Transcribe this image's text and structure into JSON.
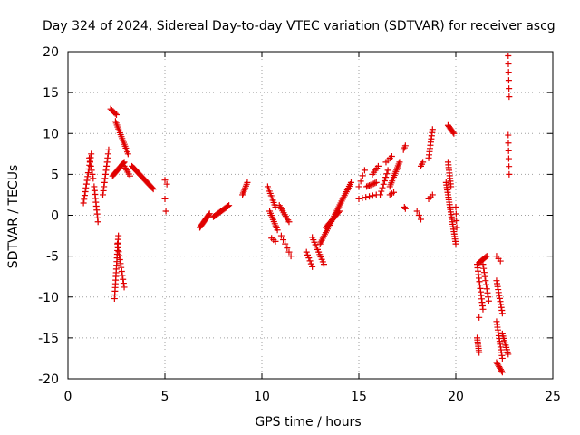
{
  "chart_data": {
    "type": "scatter",
    "title": "Day 324 of 2024, Sidereal Day-to-day VTEC variation (SDTVAR) for receiver ascg",
    "xlabel": "GPS time / hours",
    "ylabel": "SDTVAR / TECUs",
    "xlim": [
      0,
      25
    ],
    "ylim": [
      -20,
      20
    ],
    "xticks": [
      "0",
      "5",
      "10",
      "15",
      "20",
      "25"
    ],
    "yticks": [
      "-20",
      "-15",
      "-10",
      "-5",
      "0",
      "5",
      "10",
      "15",
      "20"
    ],
    "grid": true,
    "marker": "+",
    "color": "#e00000",
    "segments": [
      {
        "x0": 0.8,
        "x1": 1.2,
        "y0": 1.5,
        "y1": 7.5,
        "n": 14
      },
      {
        "x0": 1.1,
        "x1": 1.3,
        "y0": 7.0,
        "y1": 4.5,
        "n": 6
      },
      {
        "x0": 1.35,
        "x1": 1.55,
        "y0": 3.5,
        "y1": -0.8,
        "n": 10
      },
      {
        "x0": 1.8,
        "x1": 2.1,
        "y0": 2.5,
        "y1": 8.0,
        "n": 12
      },
      {
        "x0": 2.2,
        "x1": 2.5,
        "y0": 13.0,
        "y1": 12.3,
        "n": 6
      },
      {
        "x0": 2.45,
        "x1": 3.1,
        "y0": 11.5,
        "y1": 7.5,
        "n": 18
      },
      {
        "x0": 2.3,
        "x1": 2.9,
        "y0": 4.8,
        "y1": 6.5,
        "n": 16
      },
      {
        "x0": 2.9,
        "x1": 3.2,
        "y0": 6.0,
        "y1": 4.8,
        "n": 6
      },
      {
        "x0": 3.3,
        "x1": 4.4,
        "y0": 6.0,
        "y1": 3.2,
        "n": 24
      },
      {
        "x0": 2.4,
        "x1": 2.6,
        "y0": -10.2,
        "y1": -2.5,
        "n": 18
      },
      {
        "x0": 2.55,
        "x1": 2.9,
        "y0": -3.5,
        "y1": -8.8,
        "n": 12
      },
      {
        "x0": 5.0,
        "x1": 5.1,
        "y0": 4.3,
        "y1": 3.8,
        "n": 2
      },
      {
        "x0": 5.0,
        "x1": 5.05,
        "y0": 2.0,
        "y1": 0.5,
        "n": 2
      },
      {
        "x0": 6.8,
        "x1": 7.3,
        "y0": -1.5,
        "y1": 0.2,
        "n": 14
      },
      {
        "x0": 7.5,
        "x1": 8.3,
        "y0": -0.2,
        "y1": 1.2,
        "n": 16
      },
      {
        "x0": 9.0,
        "x1": 9.25,
        "y0": 2.5,
        "y1": 4.0,
        "n": 8
      },
      {
        "x0": 10.3,
        "x1": 10.7,
        "y0": 3.5,
        "y1": 1.0,
        "n": 10
      },
      {
        "x0": 10.4,
        "x1": 10.8,
        "y0": 0.5,
        "y1": -1.8,
        "n": 10
      },
      {
        "x0": 10.5,
        "x1": 10.7,
        "y0": -2.8,
        "y1": -3.2,
        "n": 3
      },
      {
        "x0": 10.9,
        "x1": 11.4,
        "y0": 1.2,
        "y1": -0.8,
        "n": 10
      },
      {
        "x0": 11.0,
        "x1": 11.5,
        "y0": -2.5,
        "y1": -5.0,
        "n": 6
      },
      {
        "x0": 12.3,
        "x1": 12.6,
        "y0": -4.5,
        "y1": -6.3,
        "n": 6
      },
      {
        "x0": 12.6,
        "x1": 13.2,
        "y0": -2.7,
        "y1": -6.0,
        "n": 12
      },
      {
        "x0": 13.0,
        "x1": 14.6,
        "y0": -3.5,
        "y1": 4.0,
        "n": 34
      },
      {
        "x0": 13.3,
        "x1": 14.0,
        "y0": -1.5,
        "y1": 0.5,
        "n": 14
      },
      {
        "x0": 15.0,
        "x1": 15.3,
        "y0": 3.5,
        "y1": 5.5,
        "n": 4
      },
      {
        "x0": 15.0,
        "x1": 15.9,
        "y0": 2.0,
        "y1": 2.5,
        "n": 6
      },
      {
        "x0": 15.4,
        "x1": 15.9,
        "y0": 3.5,
        "y1": 4.0,
        "n": 8
      },
      {
        "x0": 15.7,
        "x1": 16.0,
        "y0": 5.0,
        "y1": 6.0,
        "n": 5
      },
      {
        "x0": 16.1,
        "x1": 16.5,
        "y0": 2.5,
        "y1": 5.5,
        "n": 8
      },
      {
        "x0": 16.4,
        "x1": 16.7,
        "y0": 6.5,
        "y1": 7.2,
        "n": 4
      },
      {
        "x0": 16.6,
        "x1": 17.1,
        "y0": 3.5,
        "y1": 6.5,
        "n": 14
      },
      {
        "x0": 16.6,
        "x1": 16.8,
        "y0": 2.5,
        "y1": 2.8,
        "n": 3
      },
      {
        "x0": 17.3,
        "x1": 17.4,
        "y0": 8.0,
        "y1": 8.5,
        "n": 3
      },
      {
        "x0": 17.35,
        "x1": 17.4,
        "y0": 1.0,
        "y1": 0.8,
        "n": 2
      },
      {
        "x0": 18.2,
        "x1": 18.3,
        "y0": 6.0,
        "y1": 6.5,
        "n": 3
      },
      {
        "x0": 18.0,
        "x1": 18.2,
        "y0": 0.5,
        "y1": -0.5,
        "n": 3
      },
      {
        "x0": 18.6,
        "x1": 18.8,
        "y0": 7.0,
        "y1": 10.5,
        "n": 10
      },
      {
        "x0": 18.6,
        "x1": 18.8,
        "y0": 2.0,
        "y1": 2.5,
        "n": 3
      },
      {
        "x0": 19.6,
        "x1": 19.9,
        "y0": 11.0,
        "y1": 10.0,
        "n": 8
      },
      {
        "x0": 19.6,
        "x1": 19.75,
        "y0": 6.5,
        "y1": 3.5,
        "n": 10
      },
      {
        "x0": 19.5,
        "x1": 20.0,
        "y0": 4.0,
        "y1": -3.5,
        "n": 26
      },
      {
        "x0": 20.0,
        "x1": 20.05,
        "y0": 1.0,
        "y1": -1.5,
        "n": 4
      },
      {
        "x0": 21.1,
        "x1": 21.4,
        "y0": -6.0,
        "y1": -11.5,
        "n": 14
      },
      {
        "x0": 21.2,
        "x1": 21.6,
        "y0": -5.8,
        "y1": -5.0,
        "n": 8
      },
      {
        "x0": 21.4,
        "x1": 21.7,
        "y0": -6.0,
        "y1": -10.5,
        "n": 10
      },
      {
        "x0": 21.2,
        "x1": 21.3,
        "y0": -12.5,
        "y1": -12.5,
        "n": 1
      },
      {
        "x0": 21.1,
        "x1": 21.2,
        "y0": -15.0,
        "y1": -16.8,
        "n": 8
      },
      {
        "x0": 22.1,
        "x1": 22.3,
        "y0": -5.0,
        "y1": -5.6,
        "n": 3
      },
      {
        "x0": 22.1,
        "x1": 22.4,
        "y0": -8.0,
        "y1": -12.0,
        "n": 12
      },
      {
        "x0": 22.1,
        "x1": 22.4,
        "y0": -13.0,
        "y1": -17.5,
        "n": 14
      },
      {
        "x0": 22.1,
        "x1": 22.4,
        "y0": -18.0,
        "y1": -19.2,
        "n": 8
      },
      {
        "x0": 22.4,
        "x1": 22.7,
        "y0": -14.5,
        "y1": -17.0,
        "n": 10
      },
      {
        "x0": 22.7,
        "x1": 22.75,
        "y0": 19.5,
        "y1": 14.5,
        "n": 6
      },
      {
        "x0": 22.7,
        "x1": 22.75,
        "y0": 9.8,
        "y1": 5.0,
        "n": 6
      }
    ]
  }
}
